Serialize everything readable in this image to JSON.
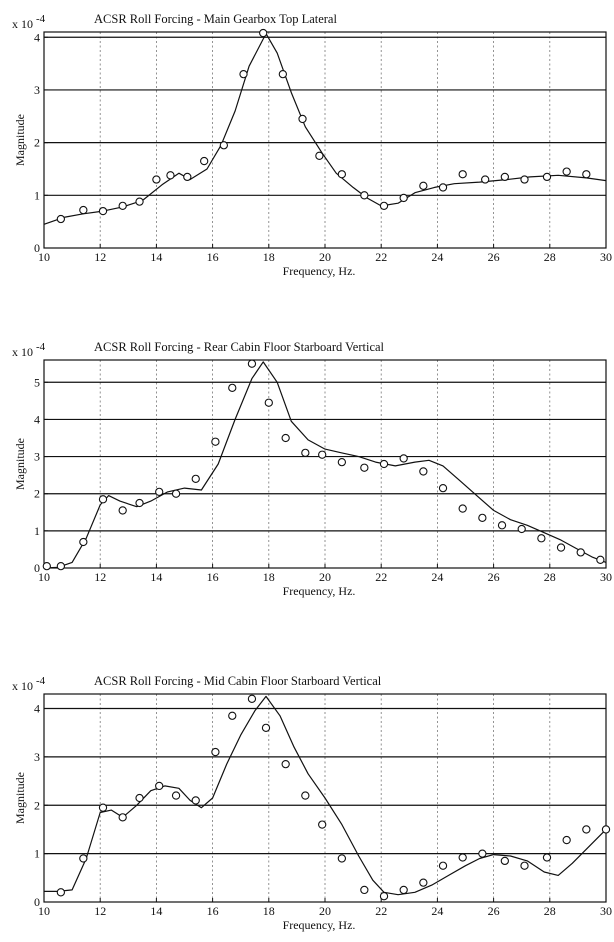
{
  "chart_data": [
    {
      "type": "line",
      "title": "ACSR Roll Forcing - Main Gearbox Top Lateral",
      "xlabel": "Frequency, Hz.",
      "ylabel": "Magnitude",
      "y_multiplier": "x 10",
      "y_exponent": "-4",
      "xlim": [
        10,
        30
      ],
      "ylim": [
        0,
        4.1
      ],
      "xticks": [
        10,
        12,
        14,
        16,
        18,
        20,
        22,
        24,
        26,
        28,
        30
      ],
      "yticks": [
        0,
        1,
        2,
        3,
        4
      ],
      "grid": true,
      "series": [
        {
          "style": "solid line",
          "x": [
            10,
            10.7,
            11.4,
            12.1,
            12.8,
            13.5,
            14.2,
            14.8,
            15.2,
            15.8,
            16.3,
            16.8,
            17.3,
            17.9,
            18.3,
            18.8,
            19.3,
            19.9,
            20.4,
            21,
            21.5,
            22,
            22.6,
            23.2,
            23.9,
            24.6,
            25.5,
            26.5,
            27.3,
            28.3,
            29.3,
            30
          ],
          "y": [
            0.45,
            0.58,
            0.65,
            0.7,
            0.78,
            0.9,
            1.2,
            1.42,
            1.3,
            1.5,
            1.95,
            2.6,
            3.45,
            4.07,
            3.7,
            2.95,
            2.3,
            1.8,
            1.42,
            1.15,
            0.95,
            0.8,
            0.85,
            1.05,
            1.15,
            1.22,
            1.25,
            1.3,
            1.35,
            1.38,
            1.33,
            1.28
          ]
        },
        {
          "style": "circle markers",
          "x": [
            10.6,
            11.4,
            12.1,
            12.8,
            13.4,
            14,
            14.5,
            15.1,
            15.7,
            16.4,
            17.1,
            17.8,
            18.5,
            19.2,
            19.8,
            20.6,
            21.4,
            22.1,
            22.8,
            23.5,
            24.2,
            24.9,
            25.7,
            26.4,
            27.1,
            27.9,
            28.6,
            29.3
          ],
          "y": [
            0.55,
            0.72,
            0.7,
            0.8,
            0.88,
            1.3,
            1.38,
            1.35,
            1.65,
            1.95,
            3.3,
            4.08,
            3.3,
            2.45,
            1.75,
            1.4,
            1.0,
            0.8,
            0.95,
            1.18,
            1.15,
            1.4,
            1.3,
            1.35,
            1.3,
            1.35,
            1.45,
            1.4
          ]
        }
      ]
    },
    {
      "type": "line",
      "title": "ACSR Roll Forcing - Rear Cabin Floor Starboard Vertical",
      "xlabel": "Frequency, Hz.",
      "ylabel": "Magnitude",
      "y_multiplier": "x 10",
      "y_exponent": "-4",
      "xlim": [
        10,
        30
      ],
      "ylim": [
        0,
        5.6
      ],
      "xticks": [
        10,
        12,
        14,
        16,
        18,
        20,
        22,
        24,
        26,
        28,
        30
      ],
      "yticks": [
        0,
        1,
        2,
        3,
        4,
        5
      ],
      "grid": true,
      "series": [
        {
          "style": "solid line",
          "x": [
            10,
            10.5,
            11,
            11.5,
            12,
            12.3,
            12.7,
            13.3,
            13.8,
            14.4,
            15,
            15.6,
            16.2,
            16.8,
            17.4,
            17.8,
            18.3,
            18.8,
            19.4,
            20,
            20.6,
            21.2,
            21.8,
            22.5,
            23.2,
            23.7,
            24.2,
            24.8,
            25.4,
            26,
            26.6,
            27.2,
            27.8,
            28.4,
            29,
            29.5,
            30
          ],
          "y": [
            0,
            0.02,
            0.15,
            0.8,
            1.7,
            1.95,
            1.8,
            1.65,
            1.8,
            2.05,
            2.15,
            2.1,
            2.8,
            4.0,
            5.1,
            5.55,
            5.0,
            3.95,
            3.45,
            3.2,
            3.1,
            3.0,
            2.85,
            2.75,
            2.85,
            2.9,
            2.75,
            2.35,
            1.95,
            1.55,
            1.3,
            1.15,
            0.95,
            0.75,
            0.5,
            0.3,
            0.15
          ]
        },
        {
          "style": "circle markers",
          "x": [
            10.1,
            10.6,
            11.4,
            12.1,
            12.8,
            13.4,
            14.1,
            14.7,
            15.4,
            16.1,
            16.7,
            17.4,
            18,
            18.6,
            19.3,
            19.9,
            20.6,
            21.4,
            22.1,
            22.8,
            23.5,
            24.2,
            24.9,
            25.6,
            26.3,
            27,
            27.7,
            28.4,
            29.1,
            29.8
          ],
          "y": [
            0.05,
            0.05,
            0.7,
            1.85,
            1.55,
            1.75,
            2.05,
            2.0,
            2.4,
            3.4,
            4.85,
            5.5,
            4.45,
            3.5,
            3.1,
            3.05,
            2.85,
            2.7,
            2.8,
            2.95,
            2.6,
            2.15,
            1.6,
            1.35,
            1.15,
            1.05,
            0.8,
            0.55,
            0.42,
            0.22
          ]
        }
      ]
    },
    {
      "type": "line",
      "title": "ACSR Roll Forcing - Mid Cabin Floor Starboard Vertical",
      "xlabel": "Frequency, Hz.",
      "ylabel": "Magnitude",
      "y_multiplier": "x 10",
      "y_exponent": "-4",
      "xlim": [
        10,
        30
      ],
      "ylim": [
        0,
        4.3
      ],
      "xticks": [
        10,
        12,
        14,
        16,
        18,
        20,
        22,
        24,
        26,
        28,
        30
      ],
      "yticks": [
        0,
        1,
        2,
        3,
        4
      ],
      "grid": true,
      "series": [
        {
          "style": "solid line",
          "x": [
            10,
            10.5,
            11,
            11.5,
            12,
            12.4,
            12.8,
            13.3,
            13.8,
            14.3,
            14.8,
            15.2,
            15.6,
            16,
            16.5,
            17,
            17.5,
            17.9,
            18.4,
            18.9,
            19.4,
            20,
            20.6,
            21.2,
            21.7,
            22.1,
            22.6,
            23.2,
            23.8,
            24.4,
            25,
            25.5,
            26,
            26.6,
            27.2,
            27.8,
            28.3,
            28.8,
            29.4,
            30
          ],
          "y": [
            0.22,
            0.22,
            0.25,
            0.9,
            1.85,
            1.9,
            1.75,
            2.0,
            2.3,
            2.4,
            2.35,
            2.1,
            1.95,
            2.15,
            2.85,
            3.45,
            3.95,
            4.25,
            3.85,
            3.2,
            2.65,
            2.15,
            1.6,
            0.95,
            0.45,
            0.2,
            0.15,
            0.2,
            0.35,
            0.55,
            0.75,
            0.9,
            0.98,
            0.95,
            0.85,
            0.62,
            0.55,
            0.8,
            1.15,
            1.5
          ]
        },
        {
          "style": "circle markers",
          "x": [
            10.6,
            11.4,
            12.1,
            12.8,
            13.4,
            14.1,
            14.7,
            15.4,
            16.1,
            16.7,
            17.4,
            17.9,
            18.6,
            19.3,
            19.9,
            20.6,
            21.4,
            22.1,
            22.8,
            23.5,
            24.2,
            24.9,
            25.6,
            26.4,
            27.1,
            27.9,
            28.6,
            29.3,
            30
          ],
          "y": [
            0.2,
            0.9,
            1.95,
            1.75,
            2.15,
            2.4,
            2.2,
            2.1,
            3.1,
            3.85,
            4.2,
            3.6,
            2.85,
            2.2,
            1.6,
            0.9,
            0.25,
            0.12,
            0.25,
            0.4,
            0.75,
            0.92,
            1.0,
            0.85,
            0.75,
            0.92,
            1.28,
            1.5,
            1.5
          ]
        }
      ]
    }
  ]
}
